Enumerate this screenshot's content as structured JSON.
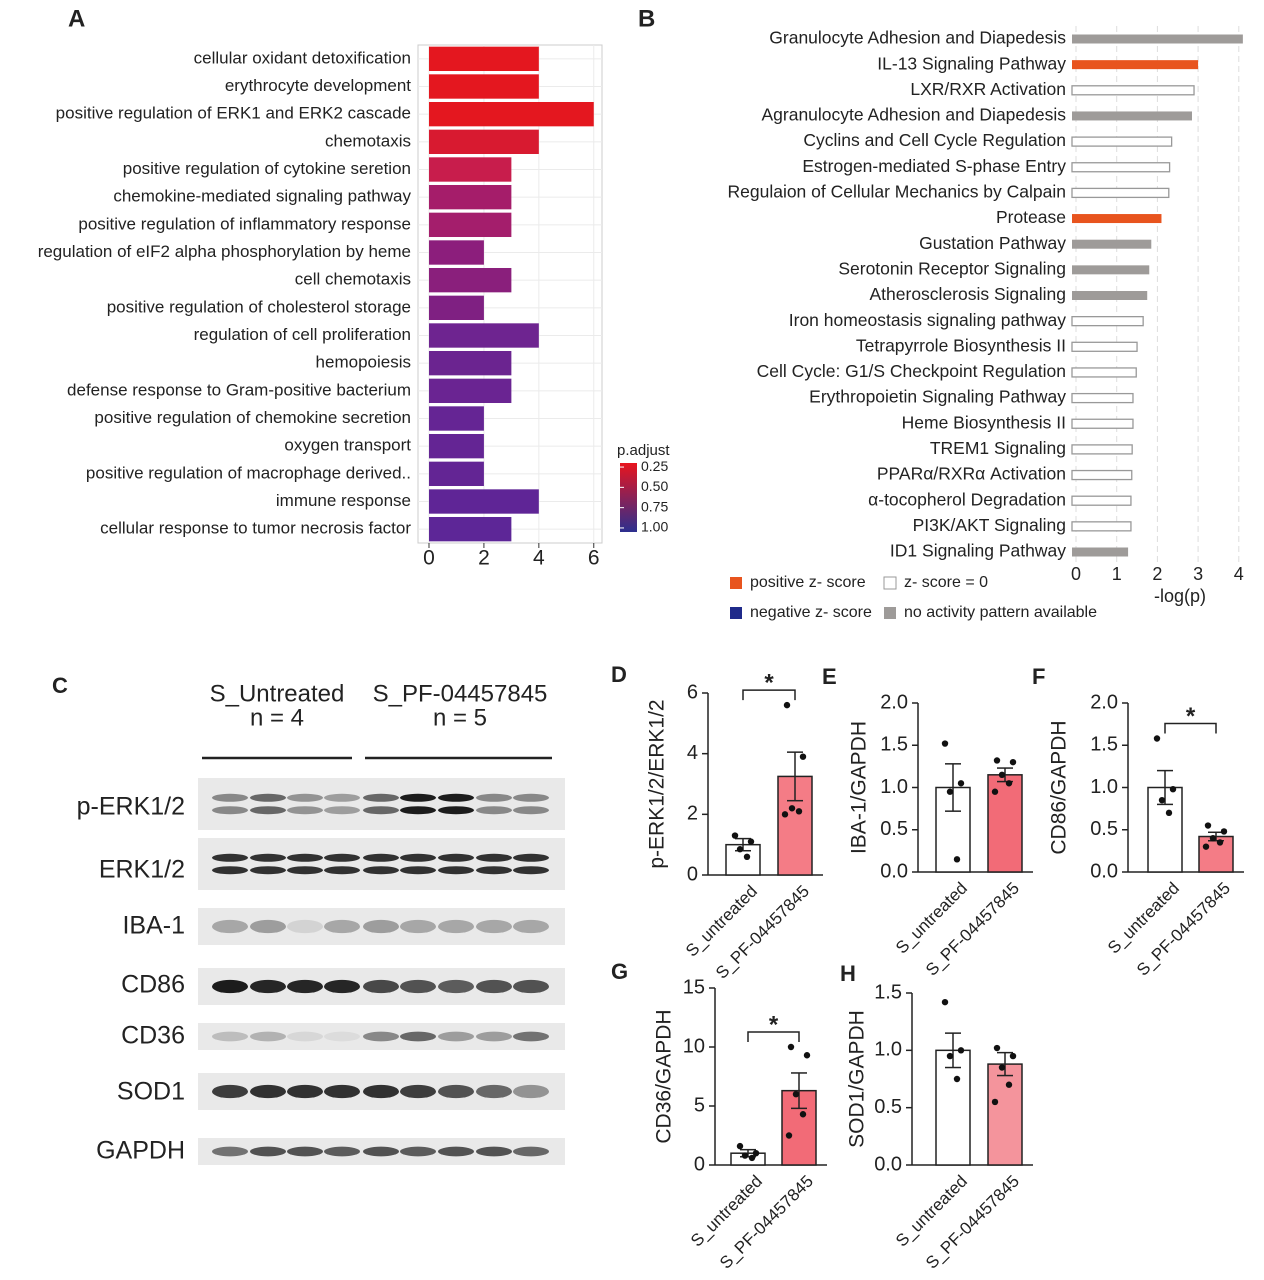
{
  "chart_data": [
    {
      "type": "hbar_gradient",
      "label": "A",
      "categories": [
        "cellular oxidant detoxification",
        "erythrocyte development",
        "positive regulation of ERK1 and ERK2 cascade",
        "chemotaxis",
        "positive regulation of cytokine seretion",
        "chemokine-mediated signaling pathway",
        "positive regulation of inflammatory response",
        "regulation of eIF2 alpha phosphorylation by heme",
        "cell chemotaxis",
        "positive regulation of cholesterol storage",
        "regulation of cell proliferation",
        "hemopoiesis",
        "defense response to Gram-positive bacterium",
        "positive regulation of chemokine secretion",
        "oxygen transport",
        "positive regulation of macrophage  derived..",
        "immune response",
        "cellular response to tumor necrosis factor"
      ],
      "values": [
        4,
        4,
        6,
        4,
        3,
        3,
        3,
        2,
        3,
        2,
        4,
        3,
        3,
        2,
        2,
        2,
        4,
        3
      ],
      "colors": [
        "#e4171f",
        "#e4171f",
        "#e4171f",
        "#d81a30",
        "#c81d4c",
        "#a51d6a",
        "#a41e6c",
        "#8c1e7c",
        "#8a1f7c",
        "#7f2082",
        "#6e2490",
        "#6b2490",
        "#6a2492",
        "#652594",
        "#642594",
        "#632594",
        "#5f2596",
        "#5d2697"
      ],
      "xlim": [
        -0.4,
        6.3
      ],
      "xticks": [
        0,
        2,
        4,
        6
      ],
      "grid": true,
      "colorbar": {
        "title": "p.adjust",
        "lim": [
          0.2,
          1.05
        ],
        "colors": [
          "#e8141e",
          "#2c2f8f"
        ],
        "ticks": [
          0.25,
          {
            "value": 0.5,
            "label": "0.50"
          },
          0.75,
          {
            "value": 1,
            "label": "1.00"
          }
        ]
      }
    },
    {
      "type": "hbar_pattern",
      "label": "B",
      "xlabel": "-log(p)",
      "categories": [
        "Granulocyte Adhesion and Diapedesis",
        "IL-13 Signaling Pathway",
        "LXR/RXR Activation",
        "Agranulocyte Adhesion and Diapedesis",
        "Cyclins and Cell Cycle Regulation",
        "Estrogen-mediated S-phase Entry",
        "Regulaion of Cellular Mechanics by Calpain",
        "Protease",
        "Gustation Pathway",
        "Serotonin Receptor Signaling",
        "Atherosclerosis Signaling",
        "Iron homeostasis signaling pathway",
        "Tetrapyrrole Biosynthesis II",
        "Cell Cycle: G1/S Checkpoint Regulation",
        "Erythropoietin Signaling Pathway",
        "Heme Biosynthesis II",
        "TREM1 Signaling",
        "PPARα/RXRα Activation",
        "α-tocopherol Degradation",
        "PI3K/AKT Signaling",
        "ID1 Signaling Pathway"
      ],
      "values": [
        4.1,
        3.0,
        2.9,
        2.85,
        2.35,
        2.3,
        2.28,
        2.1,
        1.85,
        1.8,
        1.75,
        1.65,
        1.5,
        1.48,
        1.4,
        1.4,
        1.38,
        1.37,
        1.35,
        1.35,
        1.28
      ],
      "colors": [
        "#9e9b99",
        "#e8541e",
        "#ffffff",
        "#9e9b99",
        "#ffffff",
        "#ffffff",
        "#ffffff",
        "#e8541e",
        "#9e9b99",
        "#9e9b99",
        "#9e9b99",
        "#ffffff",
        "#ffffff",
        "#ffffff",
        "#ffffff",
        "#ffffff",
        "#ffffff",
        "#ffffff",
        "#ffffff",
        "#ffffff",
        "#9e9b99"
      ],
      "xlim": [
        0,
        4.3
      ],
      "xticks": [
        0,
        1,
        2,
        3,
        4
      ],
      "grid": true,
      "legend": [
        {
          "name": "positive z- score",
          "color": "#e8541e"
        },
        {
          "name": "z- score = 0",
          "color": "#ffffff"
        },
        {
          "name": "negative z- score",
          "color": "#1f2a8a"
        },
        {
          "name": "no activity pattern available",
          "color": "#9e9b99"
        }
      ]
    },
    {
      "type": "dotbar",
      "label": "D",
      "ylabel": "p-ERK1/2/ERK1/2",
      "categories": [
        "S_untreated",
        "S_PF-04457845"
      ],
      "values": [
        1.0,
        3.25
      ],
      "errors": [
        0.2,
        0.8
      ],
      "points": [
        [
          1.3,
          1.1,
          0.85,
          0.6
        ],
        [
          5.6,
          3.9,
          2.2,
          2.1,
          2.0
        ]
      ],
      "colors": [
        "#ffffff",
        "#f47c86"
      ],
      "ylim": [
        0,
        6
      ],
      "yticks": [
        0,
        2,
        4,
        6
      ],
      "annotation": "*"
    },
    {
      "type": "dotbar",
      "label": "E",
      "ylabel": "IBA-1/GAPDH",
      "categories": [
        "S_untreated",
        "S_PF-04457845"
      ],
      "values": [
        1.0,
        1.15
      ],
      "errors": [
        0.28,
        0.08
      ],
      "points": [
        [
          1.52,
          1.05,
          0.95,
          0.15
        ],
        [
          1.32,
          1.3,
          1.15,
          1.05,
          0.95
        ]
      ],
      "colors": [
        "#ffffff",
        "#f26b77"
      ],
      "ylim": [
        0,
        2
      ],
      "yticks": [
        {
          "value": 0,
          "label": "0.0"
        },
        0.5,
        {
          "value": 1,
          "label": "1.0"
        },
        1.5,
        {
          "value": 2,
          "label": "2.0"
        }
      ]
    },
    {
      "type": "dotbar",
      "label": "F",
      "ylabel": "CD86/GAPDH",
      "categories": [
        "S_untreated",
        "S_PF-04457845"
      ],
      "values": [
        1.0,
        0.42
      ],
      "errors": [
        0.2,
        0.05
      ],
      "points": [
        [
          1.58,
          0.98,
          0.85,
          0.7
        ],
        [
          0.55,
          0.48,
          0.4,
          0.35,
          0.3
        ]
      ],
      "colors": [
        "#ffffff",
        "#f47c86"
      ],
      "ylim": [
        0,
        2
      ],
      "yticks": [
        {
          "value": 0,
          "label": "0.0"
        },
        0.5,
        {
          "value": 1,
          "label": "1.0"
        },
        1.5,
        {
          "value": 2,
          "label": "2.0"
        }
      ],
      "annotation": "*"
    },
    {
      "type": "dotbar",
      "label": "G",
      "ylabel": "CD36/GAPDH",
      "categories": [
        "S_untreated",
        "S_PF-04457845"
      ],
      "values": [
        1.0,
        6.3
      ],
      "errors": [
        0.3,
        1.5
      ],
      "points": [
        [
          1.6,
          1.0,
          0.8,
          0.6
        ],
        [
          10.0,
          9.3,
          6.0,
          4.3,
          2.5
        ]
      ],
      "colors": [
        "#ffffff",
        "#f26b77"
      ],
      "ylim": [
        0,
        15
      ],
      "yticks": [
        0,
        5,
        10,
        15
      ],
      "annotation": "*"
    },
    {
      "type": "dotbar",
      "label": "H",
      "ylabel": "SOD1/GAPDH",
      "categories": [
        "S_untreated",
        "S_PF-04457845"
      ],
      "values": [
        1.0,
        0.88
      ],
      "errors": [
        0.15,
        0.1
      ],
      "points": [
        [
          1.42,
          1.0,
          0.95,
          0.75
        ],
        [
          1.02,
          0.95,
          0.85,
          0.7,
          0.55
        ]
      ],
      "colors": [
        "#ffffff",
        "#f4949c"
      ],
      "ylim": [
        0,
        1.5
      ],
      "yticks": [
        {
          "value": 0,
          "label": "0.0"
        },
        0.5,
        {
          "value": 1,
          "label": "1.0"
        },
        1.5
      ]
    }
  ],
  "blot": {
    "label": "C",
    "groups": [
      {
        "name": "S_Untreated",
        "n": "n = 4"
      },
      {
        "name": "S_PF-04457845",
        "n": "n = 5"
      }
    ],
    "proteins": [
      "p-ERK1/2",
      "ERK1/2",
      "IBA-1",
      "CD86",
      "CD36",
      "SOD1",
      "GAPDH"
    ]
  }
}
